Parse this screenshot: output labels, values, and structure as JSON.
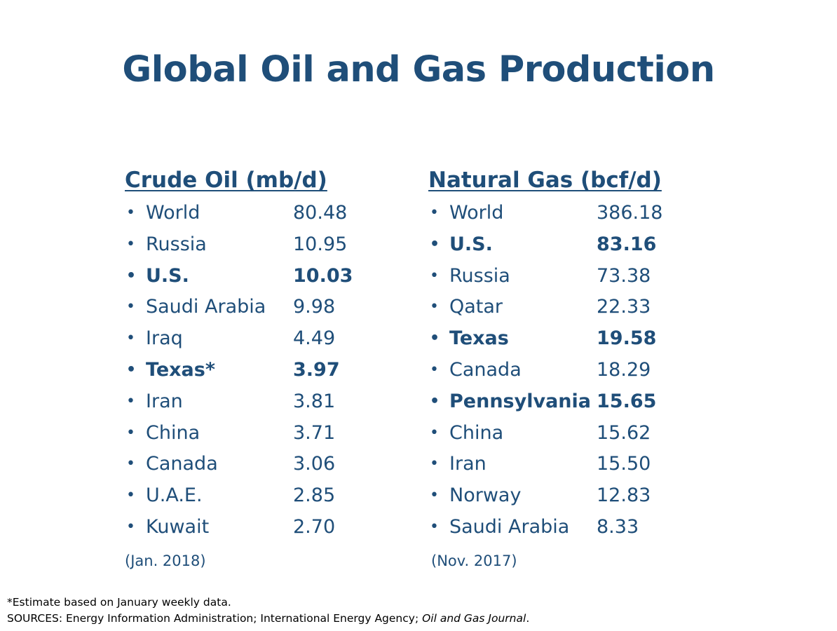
{
  "slide": {
    "title": "Global Oil and Gas Production"
  },
  "oil": {
    "heading": "Crude Oil (mb/d)",
    "date_note": "(Jan. 2018)",
    "rows": [
      {
        "name": "World",
        "value": "80.48",
        "bold": false
      },
      {
        "name": "Russia",
        "value": "10.95",
        "bold": false
      },
      {
        "name": "U.S.",
        "value": "10.03",
        "bold": true
      },
      {
        "name": "Saudi Arabia",
        "value": "9.98",
        "bold": false
      },
      {
        "name": "Iraq",
        "value": "4.49",
        "bold": false
      },
      {
        "name": "Texas*",
        "value": "3.97",
        "bold": true
      },
      {
        "name": "Iran",
        "value": "3.81",
        "bold": false
      },
      {
        "name": "China",
        "value": "3.71",
        "bold": false
      },
      {
        "name": "Canada",
        "value": "3.06",
        "bold": false
      },
      {
        "name": "U.A.E.",
        "value": "2.85",
        "bold": false
      },
      {
        "name": "Kuwait",
        "value": "2.70",
        "bold": false
      }
    ]
  },
  "gas": {
    "heading": "Natural Gas (bcf/d)",
    "date_note": "(Nov. 2017)",
    "rows": [
      {
        "name": "World",
        "value": "386.18",
        "bold": false
      },
      {
        "name": "U.S.",
        "value": "83.16",
        "bold": true
      },
      {
        "name": "Russia",
        "value": "73.38",
        "bold": false
      },
      {
        "name": "Qatar",
        "value": "22.33",
        "bold": false
      },
      {
        "name": "Texas",
        "value": "19.58",
        "bold": true
      },
      {
        "name": "Canada",
        "value": "18.29",
        "bold": false
      },
      {
        "name": "Pennsylvania",
        "value": "15.65",
        "bold": true
      },
      {
        "name": "China",
        "value": "15.62",
        "bold": false
      },
      {
        "name": "Iran",
        "value": "15.50",
        "bold": false
      },
      {
        "name": "Norway",
        "value": "12.83",
        "bold": false
      },
      {
        "name": "Saudi Arabia",
        "value": "8.33",
        "bold": false
      }
    ]
  },
  "footnotes": {
    "estimate": "*Estimate based on January weekly data.",
    "sources_prefix": "SOURCES: Energy Information Administration; International Energy Agency; ",
    "sources_italic": "Oil and Gas Journal",
    "sources_suffix": "."
  },
  "bullet_glyph": "•",
  "colors": {
    "text_blue": "#1f4e79",
    "footnote": "#000000"
  }
}
